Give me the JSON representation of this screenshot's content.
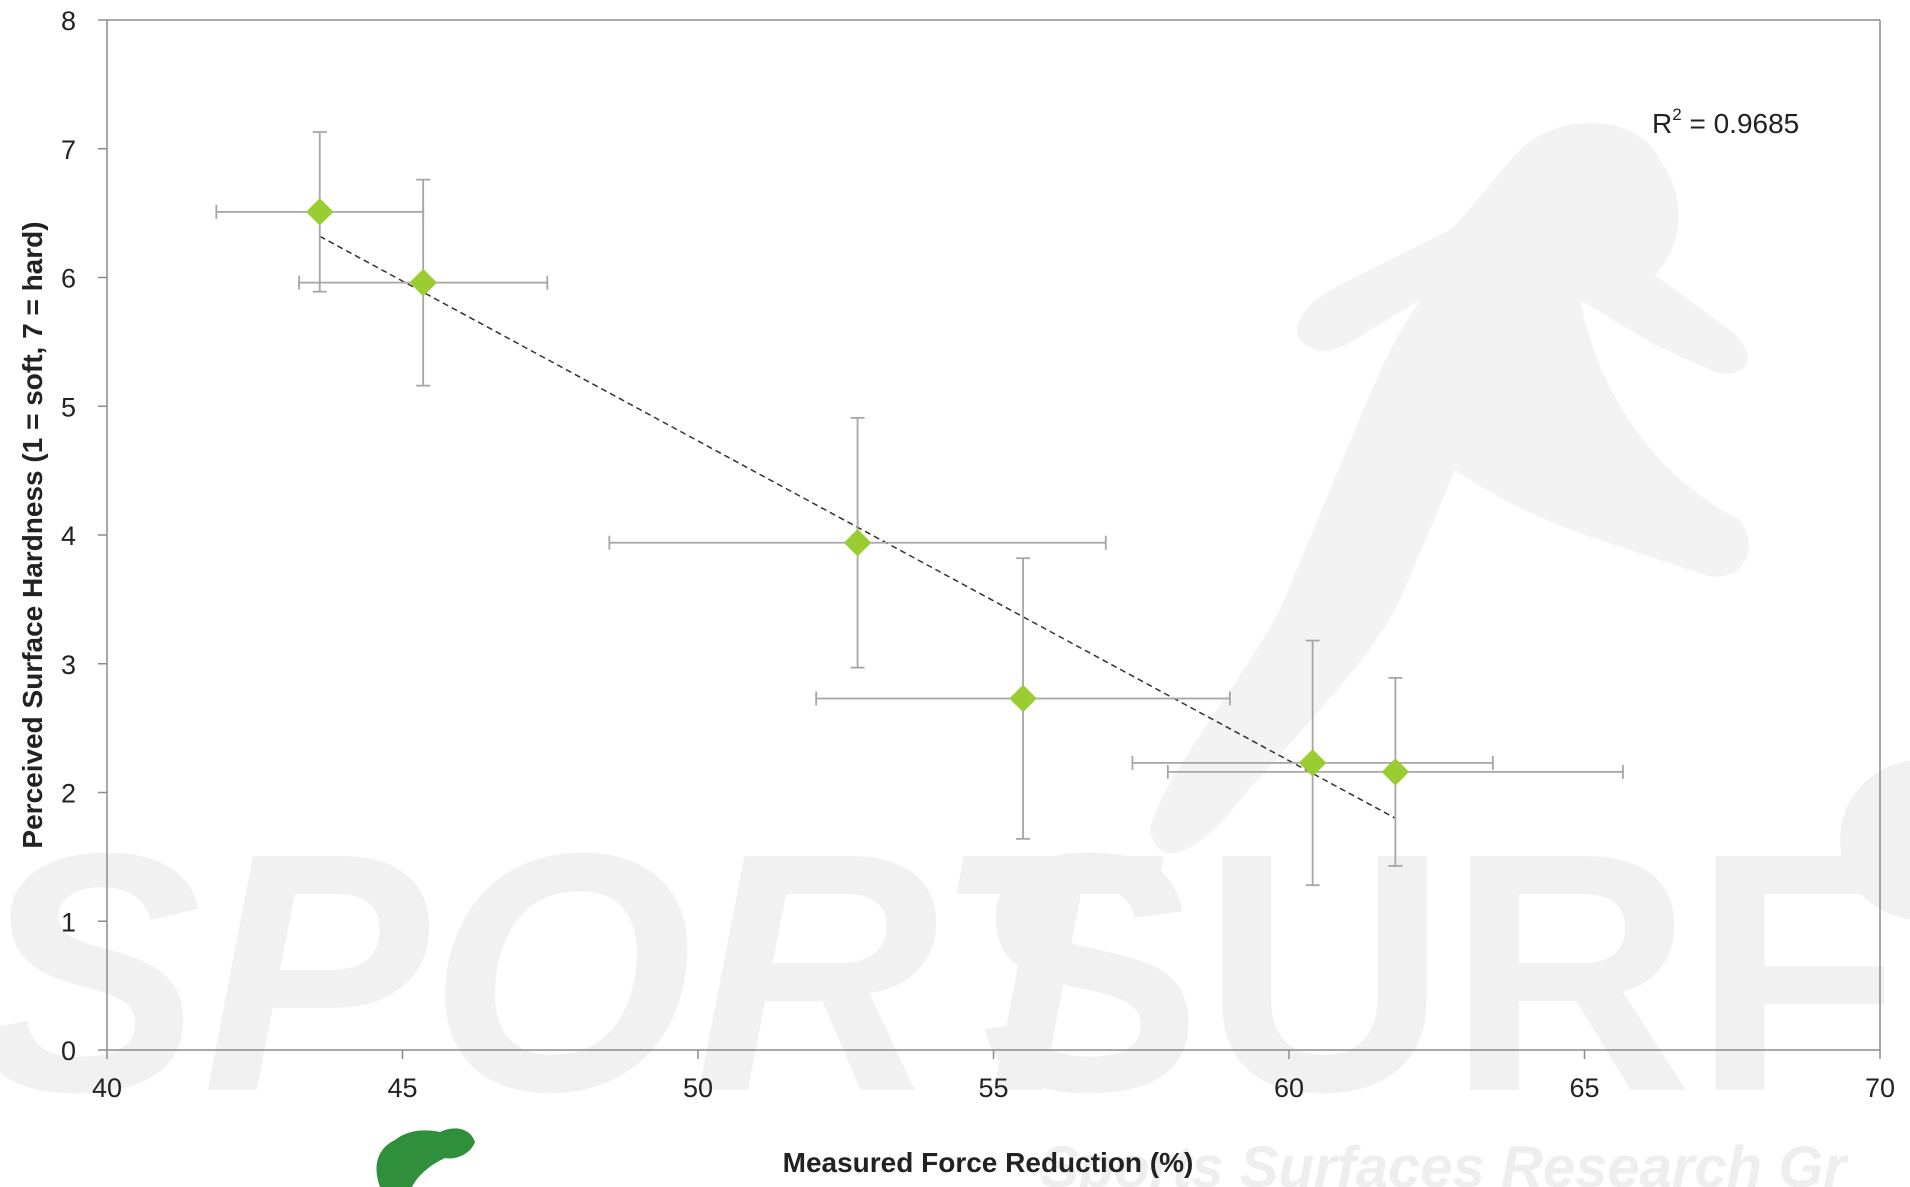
{
  "chart_data": {
    "type": "scatter",
    "title": "",
    "xlabel": "Measured Force Reduction (%)",
    "ylabel": "Perceived Surface Hardness (1 = soft, 7 = hard)",
    "xlim": [
      40,
      70
    ],
    "ylim": [
      0,
      8
    ],
    "x_ticks": [
      40,
      45,
      50,
      55,
      60,
      65,
      70
    ],
    "y_ticks": [
      0,
      1,
      2,
      3,
      4,
      5,
      6,
      7,
      8
    ],
    "grid": false,
    "legend": "none",
    "marker": "diamond",
    "marker_color": "#9acd32",
    "errorbar_color": "#a6a6a6",
    "trendline": {
      "style": "dashed",
      "color": "#333333",
      "x": [
        43.6,
        61.8
      ],
      "y": [
        6.32,
        1.8
      ]
    },
    "annotation": {
      "base": "R",
      "sup": "2",
      "rest": " = 0.9685"
    },
    "points": [
      {
        "x": 43.6,
        "y": 6.51,
        "x_err": 1.75,
        "y_err": 0.62
      },
      {
        "x": 45.35,
        "y": 5.96,
        "x_err": 2.1,
        "y_err": 0.8
      },
      {
        "x": 52.7,
        "y": 3.94,
        "x_err": 4.2,
        "y_err": 0.97
      },
      {
        "x": 55.5,
        "y": 2.73,
        "x_err": 3.5,
        "y_err": 1.09
      },
      {
        "x": 60.4,
        "y": 2.23,
        "x_err": 3.05,
        "y_err": 0.95
      },
      {
        "x": 61.8,
        "y": 2.16,
        "x_err": 3.85,
        "y_err": 0.73
      }
    ]
  },
  "watermark": {
    "word_1": "SPORT",
    "word_2": "SURF",
    "tagline": "Sports Surfaces Research Gr"
  }
}
